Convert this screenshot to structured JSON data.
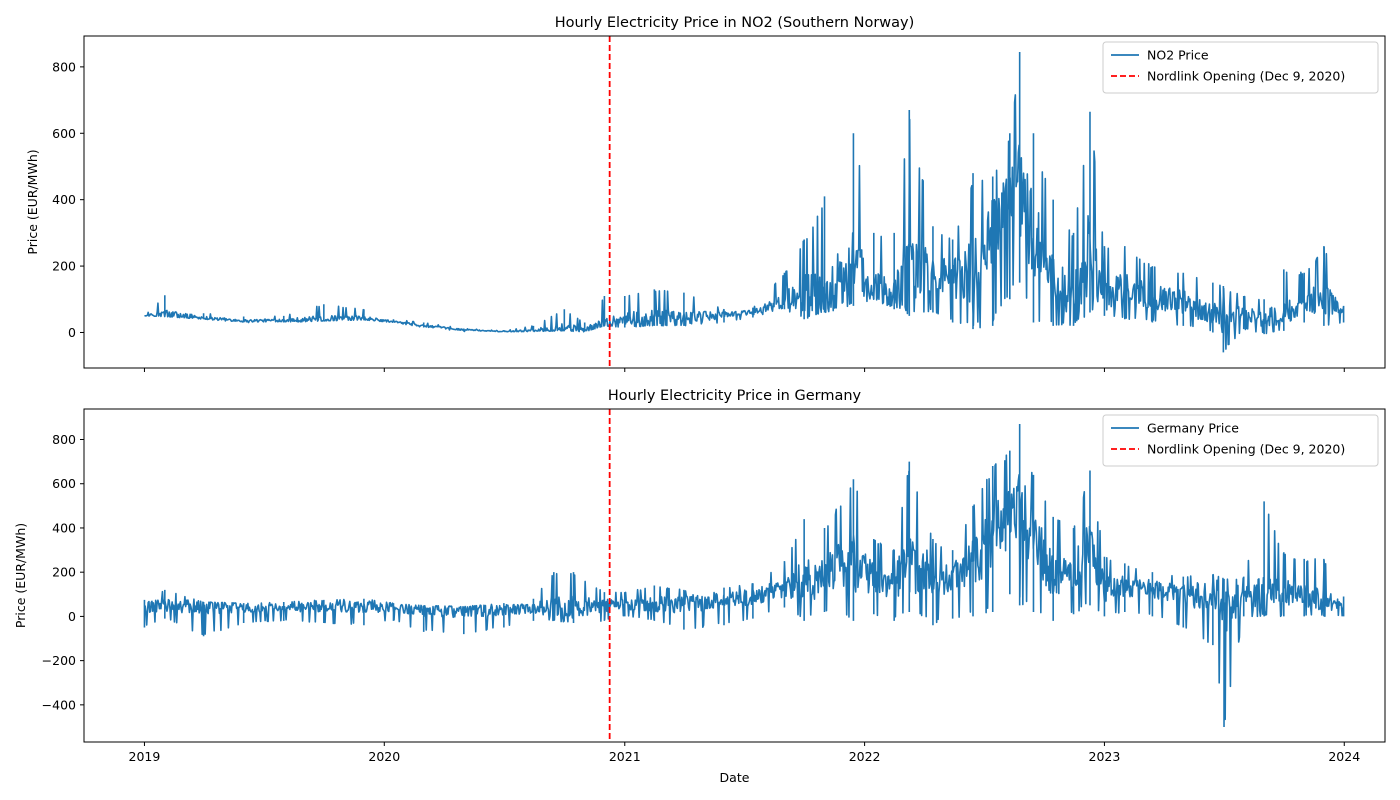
{
  "colors": {
    "series": "#1f77b4",
    "event_line": "#ff0000",
    "axes": "#000000",
    "legend_border": "#cccccc"
  },
  "chart_data": [
    {
      "type": "line",
      "title": "Hourly Electricity Price in NO2 (Southern Norway)",
      "xlabel": "",
      "ylabel": "Price (EUR/MWh)",
      "x_ticks": [
        "2019",
        "2020",
        "2021",
        "2022",
        "2023",
        "2024"
      ],
      "y_ticks": [
        0,
        200,
        400,
        600,
        800
      ],
      "xlim": [
        "2018-10-01",
        "2024-03-03"
      ],
      "ylim": [
        -107,
        893
      ],
      "grid": false,
      "legend_position": "top-right",
      "event_line": {
        "date": "2020-12-09",
        "label": "Nordlink Opening (Dec 9, 2020)"
      },
      "series": [
        {
          "name": "NO2 Price",
          "points": [
            [
              "2019-01-01",
              50,
              50,
              50
            ],
            [
              "2019-02-01",
              48,
              55,
              112
            ],
            [
              "2019-04-01",
              40,
              45,
              58
            ],
            [
              "2019-06-01",
              30,
              35,
              48
            ],
            [
              "2019-08-01",
              30,
              37,
              50
            ],
            [
              "2019-10-01",
              35,
              40,
              85
            ],
            [
              "2019-12-01",
              38,
              42,
              70
            ],
            [
              "2020-01-15",
              30,
              33,
              40
            ],
            [
              "2020-03-01",
              15,
              20,
              30
            ],
            [
              "2020-05-01",
              3,
              8,
              12
            ],
            [
              "2020-07-01",
              2,
              3,
              5
            ],
            [
              "2020-08-15",
              3,
              6,
              20
            ],
            [
              "2020-10-01",
              5,
              15,
              70
            ],
            [
              "2020-11-01",
              2,
              8,
              30
            ],
            [
              "2020-12-01",
              20,
              25,
              110
            ],
            [
              "2021-01-01",
              15,
              40,
              110
            ],
            [
              "2021-02-15",
              20,
              45,
              130
            ],
            [
              "2021-04-01",
              20,
              40,
              120
            ],
            [
              "2021-06-01",
              30,
              55,
              70
            ],
            [
              "2021-07-15",
              45,
              60,
              75
            ],
            [
              "2021-09-01",
              70,
              95,
              180
            ],
            [
              "2021-10-01",
              40,
              120,
              280
            ],
            [
              "2021-11-01",
              60,
              110,
              410
            ],
            [
              "2021-12-15",
              80,
              190,
              600
            ],
            [
              "2022-01-15",
              100,
              140,
              300
            ],
            [
              "2022-02-15",
              70,
              110,
              300
            ],
            [
              "2022-03-10",
              50,
              200,
              670
            ],
            [
              "2022-04-15",
              60,
              190,
              320
            ],
            [
              "2022-05-15",
              30,
              160,
              280
            ],
            [
              "2022-06-15",
              10,
              180,
              480
            ],
            [
              "2022-07-15",
              20,
              300,
              470
            ],
            [
              "2022-08-10",
              100,
              400,
              600
            ],
            [
              "2022-08-25",
              150,
              450,
              845
            ],
            [
              "2022-09-15",
              30,
              280,
              600
            ],
            [
              "2022-10-15",
              20,
              150,
              400
            ],
            [
              "2022-11-15",
              20,
              100,
              300
            ],
            [
              "2022-12-10",
              60,
              250,
              665
            ],
            [
              "2023-01-01",
              50,
              110,
              260
            ],
            [
              "2023-02-01",
              40,
              130,
              260
            ],
            [
              "2023-03-15",
              30,
              110,
              200
            ],
            [
              "2023-05-01",
              20,
              90,
              180
            ],
            [
              "2023-06-15",
              0,
              60,
              150
            ],
            [
              "2023-07-01",
              -60,
              40,
              140
            ],
            [
              "2023-08-01",
              10,
              60,
              110
            ],
            [
              "2023-09-01",
              -5,
              40,
              100
            ],
            [
              "2023-10-01",
              5,
              60,
              190
            ],
            [
              "2023-11-01",
              30,
              90,
              180
            ],
            [
              "2023-12-01",
              20,
              100,
              260
            ],
            [
              "2023-12-31",
              30,
              70,
              80
            ]
          ]
        }
      ]
    },
    {
      "type": "line",
      "title": "Hourly Electricity Price in Germany",
      "xlabel": "Date",
      "ylabel": "Price (EUR/MWh)",
      "x_ticks": [
        "2019",
        "2020",
        "2021",
        "2022",
        "2023",
        "2024"
      ],
      "y_ticks": [
        -400,
        -200,
        0,
        200,
        400,
        600,
        800
      ],
      "xlim": [
        "2018-10-01",
        "2024-03-03"
      ],
      "ylim": [
        -568,
        938
      ],
      "grid": false,
      "legend_position": "top-right",
      "event_line": {
        "date": "2020-12-09",
        "label": "Nordlink Opening (Dec 9, 2020)"
      },
      "series": [
        {
          "name": "Germany Price",
          "points": [
            [
              "2019-01-01",
              -50,
              40,
              75
            ],
            [
              "2019-02-01",
              -10,
              50,
              120
            ],
            [
              "2019-04-01",
              -90,
              45,
              65
            ],
            [
              "2019-06-01",
              -30,
              35,
              60
            ],
            [
              "2019-08-01",
              -20,
              40,
              65
            ],
            [
              "2019-10-01",
              -30,
              40,
              75
            ],
            [
              "2019-12-01",
              -40,
              45,
              80
            ],
            [
              "2020-01-15",
              -20,
              38,
              60
            ],
            [
              "2020-03-01",
              -70,
              25,
              50
            ],
            [
              "2020-05-01",
              -80,
              20,
              45
            ],
            [
              "2020-07-01",
              -50,
              30,
              60
            ],
            [
              "2020-08-15",
              -20,
              35,
              80
            ],
            [
              "2020-09-15",
              -20,
              45,
              200
            ],
            [
              "2020-10-15",
              -30,
              40,
              200
            ],
            [
              "2020-12-01",
              -20,
              50,
              110
            ],
            [
              "2021-01-01",
              0,
              55,
              110
            ],
            [
              "2021-02-15",
              -20,
              50,
              140
            ],
            [
              "2021-04-01",
              -60,
              55,
              120
            ],
            [
              "2021-06-01",
              -40,
              75,
              130
            ],
            [
              "2021-07-15",
              -10,
              85,
              150
            ],
            [
              "2021-09-01",
              40,
              130,
              250
            ],
            [
              "2021-10-01",
              -20,
              150,
              440
            ],
            [
              "2021-11-01",
              20,
              180,
              400
            ],
            [
              "2021-12-15",
              -20,
              250,
              620
            ],
            [
              "2022-01-15",
              10,
              180,
              350
            ],
            [
              "2022-02-15",
              -20,
              150,
              300
            ],
            [
              "2022-03-10",
              20,
              250,
              700
            ],
            [
              "2022-04-15",
              -40,
              180,
              350
            ],
            [
              "2022-05-15",
              -10,
              170,
              300
            ],
            [
              "2022-06-15",
              0,
              250,
              500
            ],
            [
              "2022-07-15",
              20,
              350,
              680
            ],
            [
              "2022-08-10",
              100,
              450,
              750
            ],
            [
              "2022-08-25",
              50,
              500,
              870
            ],
            [
              "2022-09-15",
              20,
              350,
              640
            ],
            [
              "2022-10-15",
              -20,
              180,
              450
            ],
            [
              "2022-11-15",
              10,
              200,
              400
            ],
            [
              "2022-12-10",
              50,
              300,
              660
            ],
            [
              "2023-01-01",
              0,
              120,
              270
            ],
            [
              "2023-02-01",
              20,
              140,
              240
            ],
            [
              "2023-03-15",
              0,
              120,
              200
            ],
            [
              "2023-05-01",
              -50,
              100,
              180
            ],
            [
              "2023-06-15",
              -130,
              90,
              190
            ],
            [
              "2023-07-02",
              -500,
              60,
              170
            ],
            [
              "2023-08-01",
              0,
              90,
              180
            ],
            [
              "2023-09-01",
              0,
              100,
              520
            ],
            [
              "2023-10-01",
              0,
              110,
              290
            ],
            [
              "2023-11-01",
              0,
              90,
              260
            ],
            [
              "2023-12-01",
              0,
              80,
              260
            ],
            [
              "2023-12-31",
              0,
              50,
              90
            ]
          ]
        }
      ]
    }
  ]
}
